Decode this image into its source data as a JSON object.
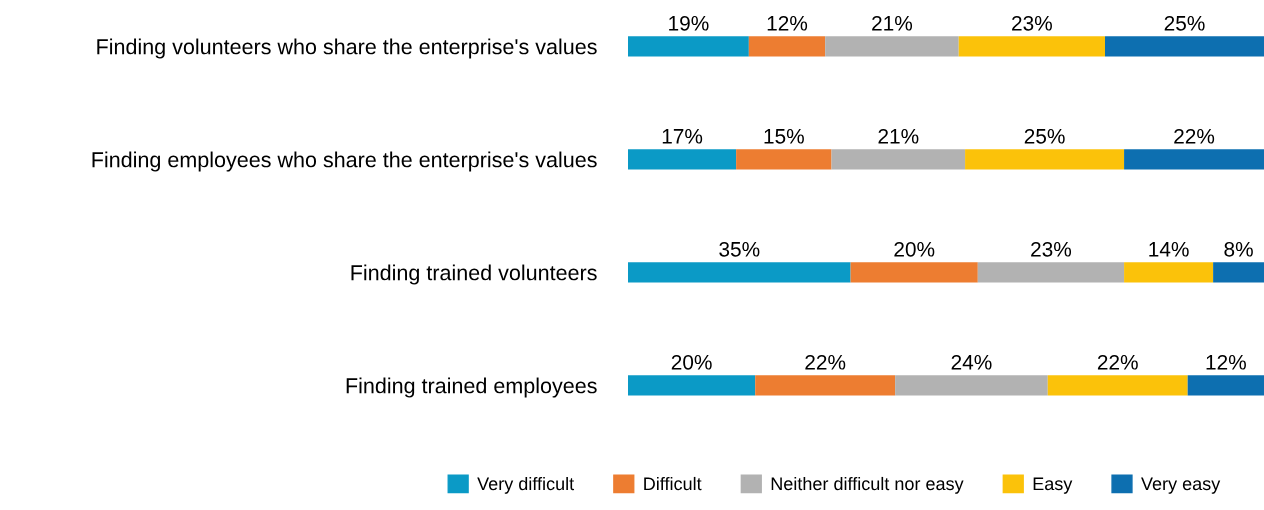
{
  "chart_data": {
    "type": "bar",
    "orientation": "horizontal",
    "stacked": true,
    "categories": [
      "Finding volunteers who share the enterprise's values",
      "Finding employees who share the enterprise's values",
      "Finding trained volunteers",
      "Finding trained employees"
    ],
    "series": [
      {
        "name": "Very difficult",
        "color": "#0b9ac6",
        "values": [
          19,
          17,
          35,
          20
        ],
        "value_labels": [
          "19%",
          "17%",
          "35%",
          "20%"
        ]
      },
      {
        "name": "Difficult",
        "color": "#ed7d31",
        "values": [
          12,
          15,
          20,
          22
        ],
        "value_labels": [
          "12%",
          "15%",
          "20%",
          "22%"
        ]
      },
      {
        "name": "Neither difficult nor easy",
        "color": "#b2b2b2",
        "values": [
          21,
          21,
          23,
          24
        ],
        "value_labels": [
          "21%",
          "21%",
          "23%",
          "24%"
        ]
      },
      {
        "name": "Easy",
        "color": "#fbc20a",
        "values": [
          23,
          25,
          14,
          22
        ],
        "value_labels": [
          "23%",
          "25%",
          "14%",
          "22%"
        ]
      },
      {
        "name": "Very easy",
        "color": "#0d6fb0",
        "values": [
          25,
          22,
          8,
          12
        ],
        "value_labels": [
          "25%",
          "22%",
          "8%",
          "12%"
        ]
      }
    ],
    "legend": "bottom",
    "tick_labels": "y"
  }
}
